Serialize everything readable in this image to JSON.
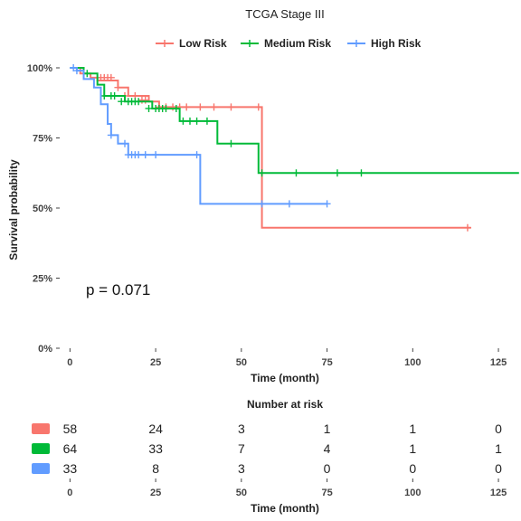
{
  "chart_data": [
    {
      "type": "line",
      "subtype": "kaplan-meier",
      "title": "TCGA Stage III",
      "xlabel": "Time (month)",
      "ylabel": "Survival probability",
      "xlim": [
        -3,
        130
      ],
      "ylim": [
        0,
        1
      ],
      "x_ticks": [
        0,
        25,
        50,
        75,
        100,
        125
      ],
      "y_ticks": [
        0,
        0.25,
        0.5,
        0.75,
        1.0
      ],
      "y_tick_labels": [
        "0%",
        "25%",
        "50%",
        "75%",
        "100%"
      ],
      "legend_position": "top",
      "annotation": "p = 0.071",
      "grid": false,
      "series": [
        {
          "name": "Low Risk",
          "color": "#F8766D",
          "steps": [
            [
              0,
              1.0
            ],
            [
              3,
              0.98
            ],
            [
              6,
              0.965
            ],
            [
              8,
              0.955
            ],
            [
              14,
              0.93
            ],
            [
              17,
              0.9
            ],
            [
              23,
              0.88
            ],
            [
              26,
              0.86
            ],
            [
              56,
              0.43
            ],
            [
              117,
              0.43
            ]
          ],
          "censored": [
            [
              8,
              0.965
            ],
            [
              9,
              0.965
            ],
            [
              10,
              0.965
            ],
            [
              11,
              0.965
            ],
            [
              12,
              0.965
            ],
            [
              14,
              0.93
            ],
            [
              16,
              0.9
            ],
            [
              19,
              0.9
            ],
            [
              21,
              0.885
            ],
            [
              22,
              0.885
            ],
            [
              26,
              0.86
            ],
            [
              28,
              0.86
            ],
            [
              30,
              0.86
            ],
            [
              32,
              0.86
            ],
            [
              34,
              0.86
            ],
            [
              38,
              0.86
            ],
            [
              42,
              0.86
            ],
            [
              47,
              0.86
            ],
            [
              55,
              0.86
            ],
            [
              116,
              0.43
            ]
          ]
        },
        {
          "name": "Medium Risk",
          "color": "#00BA38",
          "steps": [
            [
              0,
              1.0
            ],
            [
              4,
              0.98
            ],
            [
              8,
              0.94
            ],
            [
              10,
              0.9
            ],
            [
              16,
              0.88
            ],
            [
              24,
              0.855
            ],
            [
              32,
              0.81
            ],
            [
              43,
              0.73
            ],
            [
              55,
              0.625
            ],
            [
              131,
              0.625
            ]
          ],
          "censored": [
            [
              5,
              0.98
            ],
            [
              10,
              0.9
            ],
            [
              12,
              0.9
            ],
            [
              13,
              0.9
            ],
            [
              15,
              0.88
            ],
            [
              17,
              0.88
            ],
            [
              18,
              0.88
            ],
            [
              19,
              0.88
            ],
            [
              20,
              0.88
            ],
            [
              23,
              0.855
            ],
            [
              25,
              0.855
            ],
            [
              26,
              0.855
            ],
            [
              27,
              0.855
            ],
            [
              28,
              0.855
            ],
            [
              31,
              0.855
            ],
            [
              33,
              0.81
            ],
            [
              35,
              0.81
            ],
            [
              37,
              0.81
            ],
            [
              40,
              0.81
            ],
            [
              47,
              0.73
            ],
            [
              56,
              0.625
            ],
            [
              66,
              0.625
            ],
            [
              78,
              0.625
            ],
            [
              85,
              0.625
            ]
          ]
        },
        {
          "name": "High Risk",
          "color": "#619CFF",
          "steps": [
            [
              0,
              1.0
            ],
            [
              2,
              0.99
            ],
            [
              4,
              0.96
            ],
            [
              7,
              0.93
            ],
            [
              9,
              0.87
            ],
            [
              11,
              0.8
            ],
            [
              12,
              0.76
            ],
            [
              14,
              0.73
            ],
            [
              17,
              0.69
            ],
            [
              38,
              0.515
            ],
            [
              75,
              0.515
            ]
          ],
          "censored": [
            [
              1,
              1.0
            ],
            [
              2,
              0.99
            ],
            [
              12,
              0.76
            ],
            [
              16,
              0.73
            ],
            [
              17,
              0.69
            ],
            [
              18,
              0.69
            ],
            [
              19,
              0.69
            ],
            [
              20,
              0.69
            ],
            [
              22,
              0.69
            ],
            [
              25,
              0.69
            ],
            [
              37,
              0.69
            ],
            [
              56,
              0.515
            ],
            [
              64,
              0.515
            ],
            [
              75,
              0.515
            ]
          ]
        }
      ]
    },
    {
      "type": "table",
      "title": "Number at risk",
      "xlabel": "Time (month)",
      "x_ticks": [
        0,
        25,
        50,
        75,
        100,
        125
      ],
      "rows": [
        {
          "group": "Low Risk",
          "color": "#F8766D",
          "values": [
            58,
            24,
            3,
            1,
            1,
            0
          ]
        },
        {
          "group": "Medium Risk",
          "color": "#00BA38",
          "values": [
            64,
            33,
            7,
            4,
            1,
            1
          ]
        },
        {
          "group": "High Risk",
          "color": "#619CFF",
          "values": [
            33,
            8,
            3,
            0,
            0,
            0
          ]
        }
      ]
    }
  ]
}
